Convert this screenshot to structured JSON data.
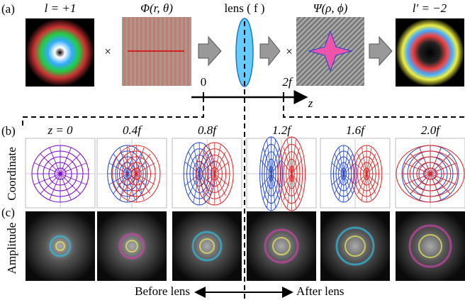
{
  "panel_a": {
    "label": "(a)",
    "input_charge": "l = +1",
    "phase_1": "Φ(r, θ)",
    "lens": "lens ( f )",
    "phase_2": "Ψ(ρ, ϕ)",
    "output_charge": "l′ = −2",
    "times": [
      "×",
      "×"
    ],
    "axis": {
      "start": "0",
      "end": "2f",
      "axis_label": "z"
    }
  },
  "panel_b": {
    "label": "(b)",
    "row_label": "Coordinate",
    "columns": [
      "z = 0",
      "0.4f",
      "0.8f",
      "1.2f",
      "1.6f",
      "2.0f"
    ]
  },
  "panel_c": {
    "label": "(c)",
    "row_label": "Amplitude"
  },
  "footer": {
    "before": "Before lens",
    "after": "After lens"
  }
}
